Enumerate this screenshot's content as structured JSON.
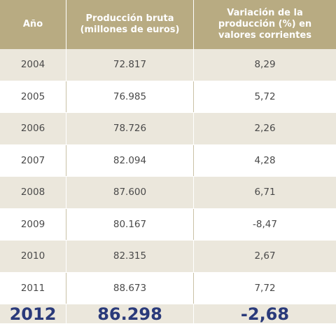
{
  "chart_data": {
    "type": "table",
    "columns": [
      "Año",
      "Producción bruta\n(millones de euros)",
      "Variación de la\nproducción (%) en\nvalores corrientes"
    ],
    "rows": [
      [
        "2004",
        "72.817",
        "8,29"
      ],
      [
        "2005",
        "76.985",
        "5,72"
      ],
      [
        "2006",
        "78.726",
        "2,26"
      ],
      [
        "2007",
        "82.094",
        "4,28"
      ],
      [
        "2008",
        "87.600",
        "6,71"
      ],
      [
        "2009",
        "80.167",
        "-8,47"
      ],
      [
        "2010",
        "82.315",
        "2,67"
      ],
      [
        "2011",
        "88.673",
        "7,72"
      ]
    ],
    "highlight_row": [
      "2012",
      "86.298",
      "-2,68"
    ]
  },
  "colors": {
    "header_bg": "#b8ab82",
    "stripe_bg": "#ebe7dc",
    "highlight_text": "#2a3a7a"
  }
}
